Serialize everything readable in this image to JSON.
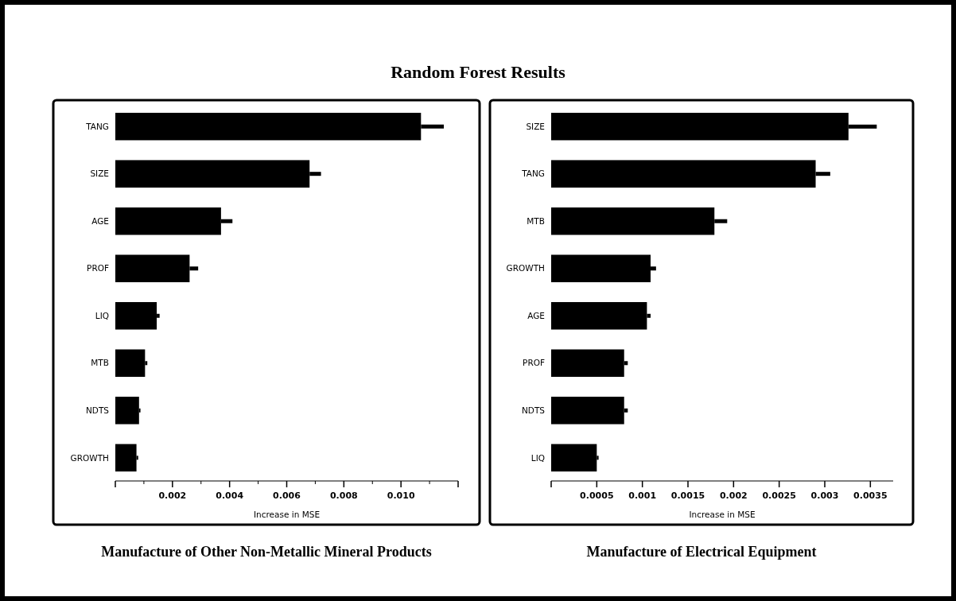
{
  "chart_data": [
    {
      "type": "bar",
      "orientation": "horizontal",
      "title": "Manufacture of Other Non-Metallic Mineral Products",
      "xlabel": "Increase in MSE",
      "annotations": [
        "Random Forest Results"
      ],
      "categories": [
        "TANG",
        "SIZE",
        "AGE",
        "PROF",
        "LIQ",
        "MTB",
        "NDTS",
        "GROWTH"
      ],
      "series": [
        {
          "color": "#000000",
          "values": [
            0.0107,
            0.0068,
            0.0037,
            0.0026,
            0.00145,
            0.00104,
            0.00083,
            0.00074
          ],
          "errors": [
            [
              0.0107,
              0.0115
            ],
            [
              0.0068,
              0.0072
            ],
            [
              0.0037,
              0.0041
            ],
            [
              0.0026,
              0.0029
            ],
            [
              0.00145,
              0.00155
            ],
            [
              0.00104,
              0.00112
            ],
            [
              0.00083,
              0.00088
            ],
            [
              0.00074,
              0.0008
            ]
          ]
        }
      ],
      "xlim": [
        0,
        0.012
      ],
      "xticks": [
        {
          "value": 0,
          "label": null
        },
        {
          "value": 0.001,
          "label": null
        },
        0.002,
        {
          "value": 0.003,
          "label": null
        },
        0.004,
        {
          "value": 0.005,
          "label": null
        },
        0.006,
        {
          "value": 0.007,
          "label": null
        },
        0.008,
        {
          "value": 0.009,
          "label": null
        },
        {
          "value": 0.01,
          "label": "0.010"
        },
        {
          "value": 0.011,
          "label": null
        },
        {
          "value": 0.012,
          "label": null
        }
      ]
    },
    {
      "type": "bar",
      "orientation": "horizontal",
      "title": "Manufacture of Electrical Equipment",
      "xlabel": "Increase in MSE",
      "categories": [
        "SIZE",
        "TANG",
        "MTB",
        "GROWTH",
        "AGE",
        "PROF",
        "NDTS",
        "LIQ"
      ],
      "series": [
        {
          "color": "#000000",
          "values": [
            0.00326,
            0.0029,
            0.00179,
            0.00109,
            0.00105,
            0.0008,
            0.0008,
            0.0005
          ],
          "errors": [
            [
              0.00326,
              0.00357
            ],
            [
              0.0029,
              0.00306
            ],
            [
              0.00179,
              0.00193
            ],
            [
              0.00109,
              0.00115
            ],
            [
              0.00105,
              0.00109
            ],
            [
              0.0008,
              0.00084
            ],
            [
              0.0008,
              0.00084
            ],
            [
              0.0005,
              0.00052
            ]
          ]
        }
      ],
      "xlim": [
        0,
        0.00375
      ],
      "xticks": [
        {
          "value": 0,
          "label": null
        },
        0.0005,
        0.001,
        0.0015,
        0.002,
        0.0025,
        0.003,
        0.0035
      ]
    }
  ]
}
